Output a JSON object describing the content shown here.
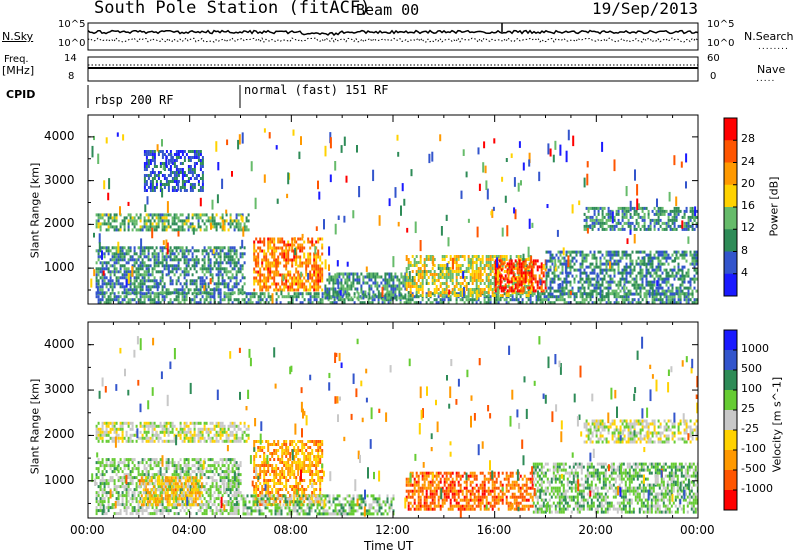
{
  "header": {
    "title": "South Pole Station (fitACF)",
    "beam": "Beam 00",
    "date": "19/Sep/2013"
  },
  "side_labels": {
    "nsky": "N.Sky",
    "freq_line1": "Freq.",
    "freq_line2": "[MHz]",
    "cpid": "CPID",
    "nsearch": "N.Search",
    "nave": "Nave"
  },
  "top_ticks": {
    "noise_left_top": "10^5",
    "noise_left_bottom": "10^0",
    "noise_right_top": "10^5",
    "noise_right_bottom": "10^0",
    "freq_left_top": "14",
    "freq_left_bottom": "8",
    "freq_right_top": "60",
    "freq_right_bottom": "0"
  },
  "cpid_modes": [
    {
      "label": "rbsp 200 RF",
      "start_hour": 0
    },
    {
      "label": "normal (fast) 151 RF",
      "start_hour": 6
    }
  ],
  "chart_data": [
    {
      "type": "heatmap",
      "title": "Power",
      "ylabel": "Slant Range [km]",
      "xlabel": "Time UT",
      "xlim_hours": [
        0,
        24
      ],
      "ylim": [
        180,
        4500
      ],
      "x_tick_labels": [
        "00:00",
        "04:00",
        "08:00",
        "12:00",
        "16:00",
        "20:00",
        "00:00"
      ],
      "y_ticks": [
        1000,
        2000,
        3000,
        4000
      ],
      "colorbar": {
        "label": "Power [dB]",
        "ticks": [
          "4",
          "8",
          "12",
          "16",
          "20",
          "24",
          "28"
        ],
        "range": [
          0,
          30
        ],
        "colors": [
          "#1a1aff",
          "#3355cc",
          "#2e8b57",
          "#66bb6a",
          "#ffd200",
          "#ff9900",
          "#ff5500",
          "#ff0000"
        ]
      },
      "regions": [
        {
          "t": [
            0.3,
            24
          ],
          "r": [
            180,
            450
          ],
          "value": 10
        },
        {
          "t": [
            0.3,
            6.3
          ],
          "r": [
            1900,
            2250
          ],
          "value": 12
        },
        {
          "t": [
            0.3,
            6.2
          ],
          "r": [
            450,
            1500
          ],
          "value": 9
        },
        {
          "t": [
            2.2,
            4.5
          ],
          "r": [
            2800,
            3700
          ],
          "value": 6
        },
        {
          "t": [
            6.5,
            9.2
          ],
          "r": [
            500,
            1700
          ],
          "value": 22
        },
        {
          "t": [
            9.3,
            12.5
          ],
          "r": [
            300,
            900
          ],
          "value": 10
        },
        {
          "t": [
            12.5,
            17.5
          ],
          "r": [
            400,
            1300
          ],
          "value": 16
        },
        {
          "t": [
            16.0,
            18.0
          ],
          "r": [
            500,
            1200
          ],
          "value": 27
        },
        {
          "t": [
            19.5,
            24
          ],
          "r": [
            1900,
            2400
          ],
          "value": 10
        },
        {
          "t": [
            18.0,
            24
          ],
          "r": [
            400,
            1400
          ],
          "value": 9
        }
      ]
    },
    {
      "type": "heatmap",
      "title": "Velocity",
      "ylabel": "Slant Range [km]",
      "xlabel": "Time UT",
      "xlim_hours": [
        0,
        24
      ],
      "ylim": [
        180,
        4500
      ],
      "x_tick_labels": [
        "00:00",
        "04:00",
        "08:00",
        "12:00",
        "16:00",
        "20:00",
        "00:00"
      ],
      "y_ticks": [
        1000,
        2000,
        3000,
        4000
      ],
      "colorbar": {
        "label": "Velocity [m s^-1]",
        "ticks": [
          "1000",
          "500",
          "100",
          "25",
          "-25",
          "-100",
          "-500",
          "-1000"
        ],
        "range": [
          -1000,
          1000
        ],
        "colors": [
          "#1a1aff",
          "#3355cc",
          "#2e8b57",
          "#66cc33",
          "#c8c8c8",
          "#ffd200",
          "#ff9900",
          "#ff5500",
          "#ff0000"
        ]
      },
      "regions": [
        {
          "t": [
            0.3,
            6.3
          ],
          "r": [
            1850,
            2300
          ],
          "value": 0
        },
        {
          "t": [
            19.5,
            24
          ],
          "r": [
            1850,
            2350
          ],
          "value": 0
        },
        {
          "t": [
            0.3,
            6.0
          ],
          "r": [
            250,
            1500
          ],
          "value": 150
        },
        {
          "t": [
            2.0,
            4.5
          ],
          "r": [
            500,
            1100
          ],
          "value": -300
        },
        {
          "t": [
            6.5,
            9.2
          ],
          "r": [
            500,
            1900
          ],
          "value": -400
        },
        {
          "t": [
            6.0,
            12.0
          ],
          "r": [
            250,
            700
          ],
          "value": 200
        },
        {
          "t": [
            12.5,
            17.5
          ],
          "r": [
            400,
            1200
          ],
          "value": -600
        },
        {
          "t": [
            17.5,
            24
          ],
          "r": [
            300,
            1400
          ],
          "value": 200
        }
      ]
    }
  ]
}
